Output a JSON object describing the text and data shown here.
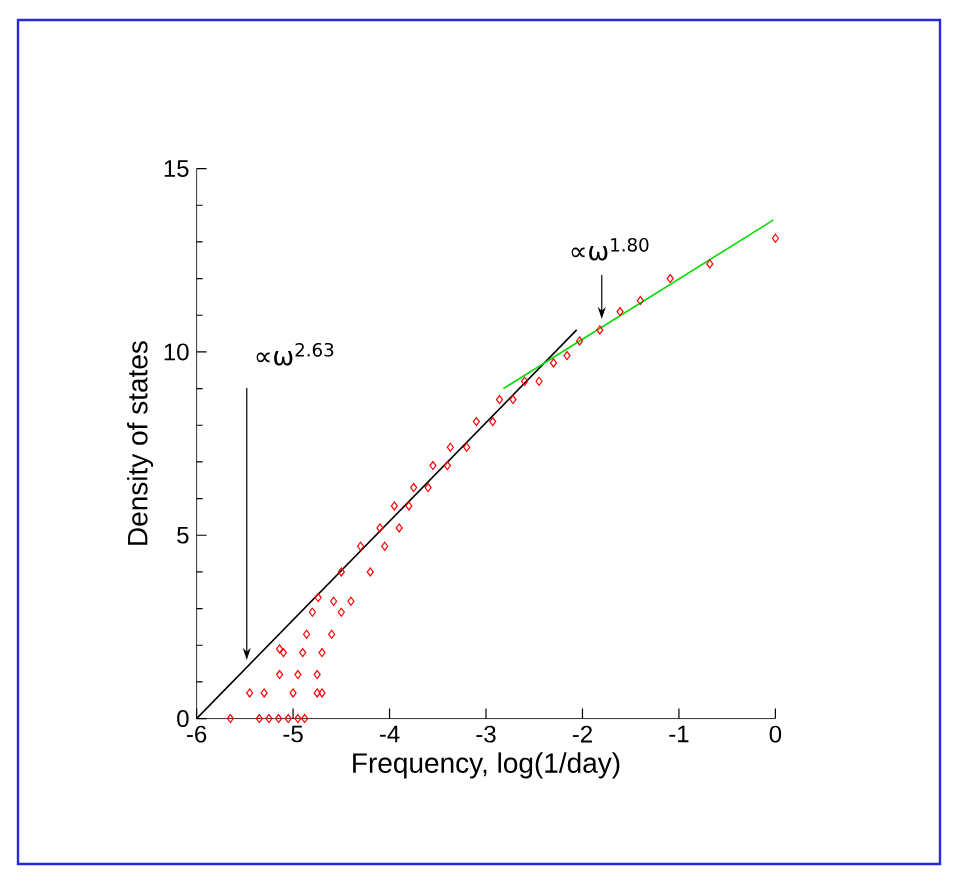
{
  "chart_data": {
    "type": "scatter",
    "xlabel": "Frequency, log(1/day)",
    "ylabel": "Density of states",
    "xlim": [
      -6,
      0
    ],
    "ylim": [
      0,
      15
    ],
    "xticks": [
      -6,
      -5,
      -4,
      -3,
      -2,
      -1,
      0
    ],
    "yticks": [
      0,
      5,
      10,
      15
    ],
    "series": [
      {
        "color": "#ff0000",
        "marker": "diamond",
        "x": [
          -5.65,
          -5.35,
          -5.25,
          -5.15,
          -5.05,
          -4.95,
          -4.88,
          -5.45,
          -5.3,
          -5.0,
          -4.75,
          -4.7,
          -5.14,
          -4.95,
          -4.75,
          -5.1,
          -4.9,
          -4.7,
          -5.14,
          -4.86,
          -4.6,
          -4.8,
          -4.5,
          -4.74,
          -4.58,
          -4.4,
          -4.5,
          -4.2,
          -4.3,
          -4.05,
          -4.1,
          -3.9,
          -3.95,
          -3.8,
          -3.75,
          -3.6,
          -3.55,
          -3.4,
          -3.37,
          -3.2,
          -3.1,
          -2.93,
          -2.86,
          -2.72,
          -2.6,
          -2.45,
          -2.3,
          -2.16,
          -2.03,
          -1.82,
          -1.61,
          -1.4,
          -1.09,
          -0.68,
          0.0
        ],
        "values": [
          0,
          0,
          0,
          0,
          0,
          0,
          0,
          0.7,
          0.7,
          0.7,
          0.7,
          0.7,
          1.2,
          1.2,
          1.2,
          1.8,
          1.8,
          1.8,
          1.9,
          2.3,
          2.3,
          2.9,
          2.9,
          3.3,
          3.2,
          3.2,
          4.0,
          4.0,
          4.7,
          4.7,
          5.2,
          5.2,
          5.8,
          5.8,
          6.3,
          6.3,
          6.9,
          6.9,
          7.4,
          7.4,
          8.1,
          8.1,
          8.7,
          8.7,
          9.2,
          9.2,
          9.7,
          9.9,
          10.3,
          10.6,
          11.1,
          11.4,
          12.0,
          12.4,
          13.1
        ]
      },
      {
        "type": "line",
        "color": "#000000",
        "marker": "none",
        "line_style": "solid",
        "x": [
          -6,
          -2.06
        ],
        "values": [
          0,
          10.6
        ]
      },
      {
        "type": "line",
        "color": "#00dd00",
        "marker": "none",
        "line_style": "solid",
        "x": [
          -2.82,
          -0.02
        ],
        "values": [
          9.0,
          13.6
        ]
      }
    ],
    "annotations": [
      {
        "text": "∝ω$^{2.63}$",
        "x": -5.48,
        "y": 1.6
      },
      {
        "text": "∝ω$^{1.80}$",
        "x": -1.8,
        "y": 10.9
      }
    ]
  }
}
